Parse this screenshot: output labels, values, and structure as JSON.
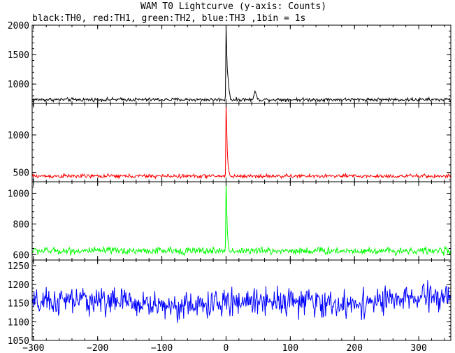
{
  "chart_data": {
    "type": "line",
    "title": "WAM T0 Lightcurve (y-axis: Counts)",
    "subtitle": "black:TH0, red:TH1, green:TH2, blue:TH3 ,1bin = 1s",
    "xlabel": "",
    "ylabel": "",
    "xlim": [
      -302,
      350
    ],
    "x_ticks": [
      -300,
      -200,
      -100,
      0,
      100,
      200,
      300
    ],
    "x_tick_labels": [
      "−300",
      "−200",
      "−100",
      "0",
      "100",
      "200",
      "300"
    ],
    "grid": false,
    "bin_seconds": 1,
    "panels": [
      {
        "name": "TH0",
        "color": "#000000",
        "ylim": [
          670,
          2000
        ],
        "y_ticks": [
          1000,
          1500,
          2000
        ],
        "y_tick_labels": [
          "1000",
          "1500",
          "2000"
        ],
        "baseline": 735,
        "noise": 28,
        "features": [
          {
            "x": -1,
            "value": 800
          },
          {
            "x": 0,
            "value": 1990
          },
          {
            "x": 1,
            "value": 1560
          },
          {
            "x": 2,
            "value": 1230
          },
          {
            "x": 3,
            "value": 1120
          },
          {
            "x": 4,
            "value": 980
          },
          {
            "x": 5,
            "value": 880
          },
          {
            "x": 6,
            "value": 820
          },
          {
            "x": 43,
            "value": 800
          },
          {
            "x": 44,
            "value": 830
          },
          {
            "x": 45,
            "value": 880
          },
          {
            "x": 46,
            "value": 860
          },
          {
            "x": 47,
            "value": 820
          },
          {
            "x": 48,
            "value": 790
          }
        ]
      },
      {
        "name": "TH1",
        "color": "#ff0000",
        "ylim": [
          375,
          1420
        ],
        "y_ticks": [
          500,
          1000
        ],
        "y_tick_labels": [
          "500",
          "1000"
        ],
        "baseline": 450,
        "noise": 24,
        "features": [
          {
            "x": -1,
            "value": 480
          },
          {
            "x": 0,
            "value": 1420
          },
          {
            "x": 1,
            "value": 1100
          },
          {
            "x": 2,
            "value": 780
          },
          {
            "x": 3,
            "value": 620
          },
          {
            "x": 4,
            "value": 540
          },
          {
            "x": 5,
            "value": 500
          }
        ]
      },
      {
        "name": "TH2",
        "color": "#00ff00",
        "ylim": [
          565,
          1075
        ],
        "y_ticks": [
          600,
          800,
          1000
        ],
        "y_tick_labels": [
          "600",
          "800",
          "1000"
        ],
        "baseline": 625,
        "noise": 22,
        "features": [
          {
            "x": -1,
            "value": 660
          },
          {
            "x": 0,
            "value": 1075
          },
          {
            "x": 1,
            "value": 900
          },
          {
            "x": 2,
            "value": 760
          },
          {
            "x": 3,
            "value": 690
          },
          {
            "x": 4,
            "value": 660
          }
        ]
      },
      {
        "name": "TH3",
        "color": "#0000ff",
        "ylim": [
          1050,
          1265
        ],
        "y_ticks": [
          1050,
          1100,
          1150,
          1200,
          1250
        ],
        "y_tick_labels": [
          "1050",
          "1100",
          "1150",
          "1200",
          "1250"
        ],
        "baseline": 1150,
        "noise": 34,
        "features": []
      }
    ]
  }
}
